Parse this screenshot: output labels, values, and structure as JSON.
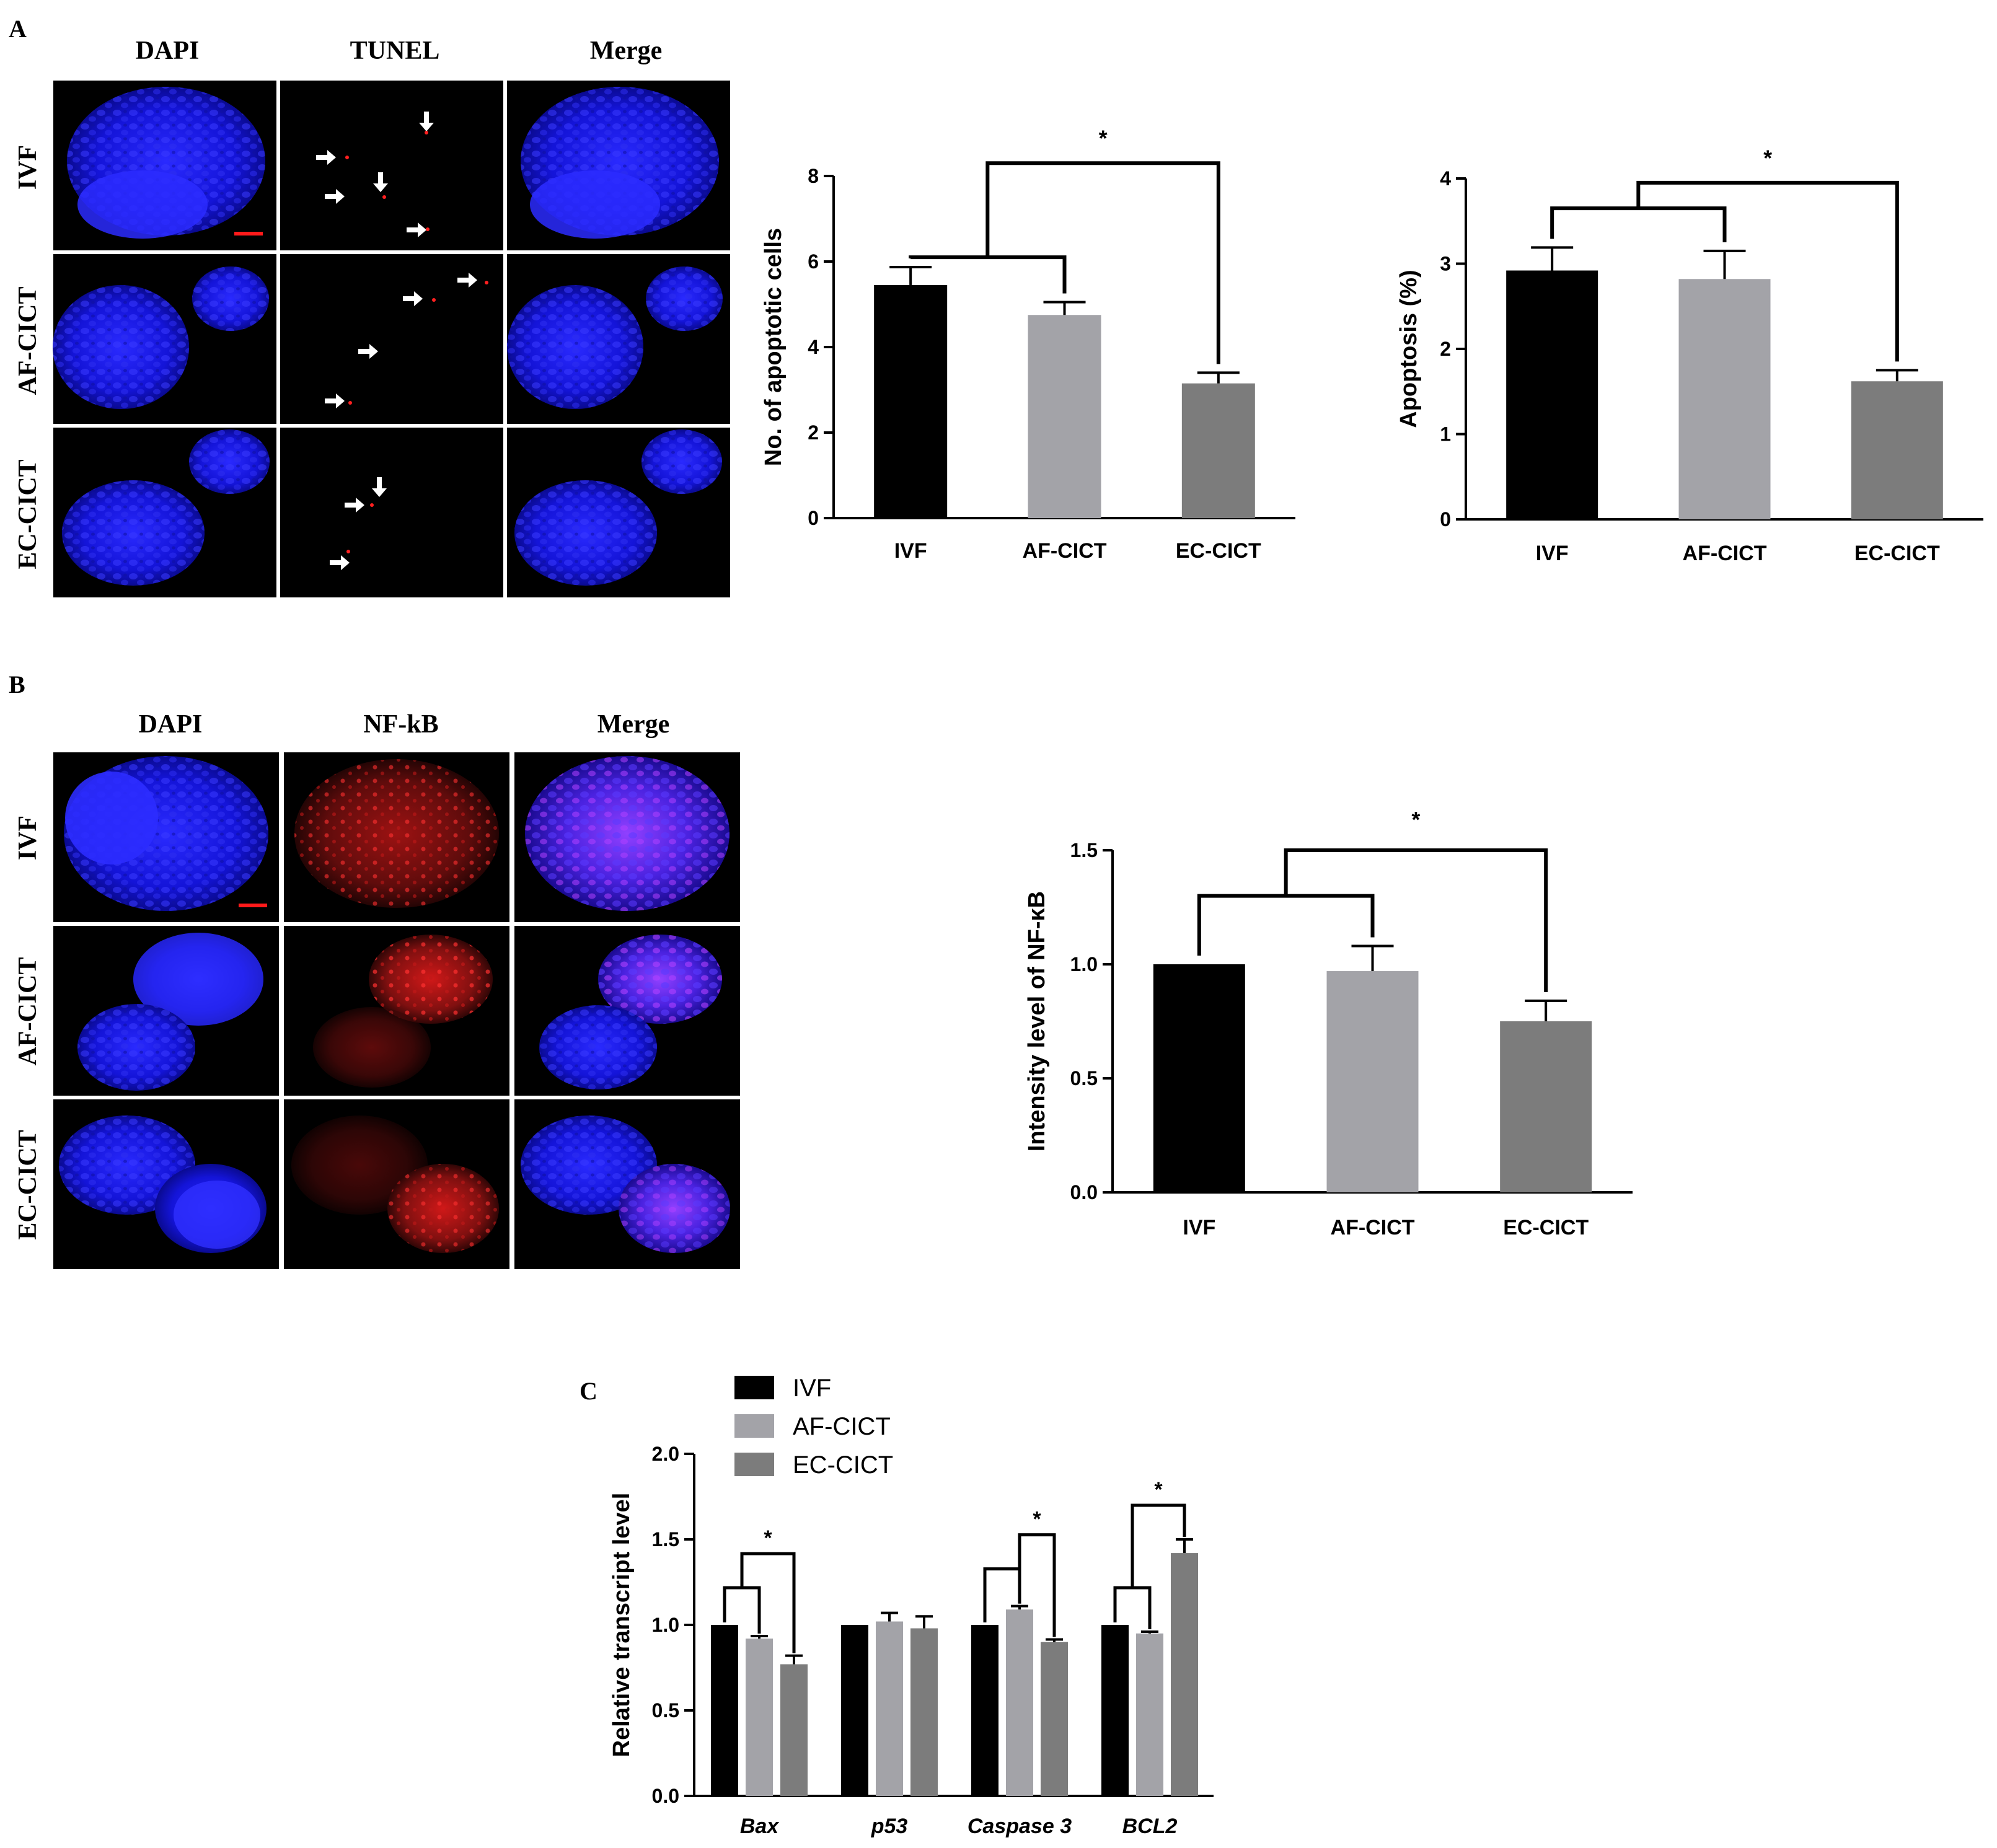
{
  "panel_a": {
    "label": "A",
    "columns": [
      "DAPI",
      "TUNEL",
      "Merge"
    ],
    "rows": [
      "IVF",
      "AF-CICT",
      "EC-CICT"
    ]
  },
  "panel_b": {
    "label": "B",
    "columns": [
      "DAPI",
      "NF-kB",
      "Merge"
    ],
    "rows": [
      "IVF",
      "AF-CICT",
      "EC-CICT"
    ]
  },
  "panel_c": {
    "label": "C"
  },
  "colors": {
    "ivf": "#000000",
    "af_cict": "#a3a3a8",
    "ec_cict": "#7c7c7c",
    "dapi": "#1a1aff",
    "tunel_red": "#ff2020",
    "scale_bar": "#ff1a1a",
    "image_bg": "#000000"
  },
  "chart_data": [
    {
      "id": "apoptotic_cells",
      "type": "bar",
      "categories": [
        "IVF",
        "AF-CICT",
        "EC-CICT"
      ],
      "values": [
        5.45,
        4.75,
        3.15
      ],
      "errors": [
        0.42,
        0.3,
        0.25
      ],
      "ylabel": "No. of apoptotic cells",
      "ylim": [
        0,
        8
      ],
      "yticks": [
        0,
        2,
        4,
        6,
        8
      ],
      "significance": "*"
    },
    {
      "id": "apoptosis_percent",
      "type": "bar",
      "categories": [
        "IVF",
        "AF-CICT",
        "EC-CICT"
      ],
      "values": [
        2.92,
        2.82,
        1.62
      ],
      "errors": [
        0.27,
        0.33,
        0.13
      ],
      "ylabel": "Apoptosis (%)",
      "ylim": [
        0,
        4
      ],
      "yticks": [
        0,
        1,
        2,
        3,
        4
      ],
      "significance": "*"
    },
    {
      "id": "nfkb_intensity",
      "type": "bar",
      "categories": [
        "IVF",
        "AF-CICT",
        "EC-CICT"
      ],
      "values": [
        1.0,
        0.97,
        0.75
      ],
      "errors": [
        0.0,
        0.11,
        0.09
      ],
      "ylabel": "Intensity level of NF-κB",
      "ylim": [
        0,
        1.5
      ],
      "yticks": [
        "0.0",
        "0.5",
        "1.0",
        "1.5"
      ],
      "significance": "*"
    },
    {
      "id": "transcript_levels",
      "type": "bar",
      "categories": [
        "Bax",
        "p53",
        "Caspase 3",
        "BCL2"
      ],
      "series": [
        {
          "name": "IVF",
          "values": [
            1.0,
            1.0,
            1.0,
            1.0
          ],
          "errors": [
            0.0,
            0.0,
            0.0,
            0.0
          ]
        },
        {
          "name": "AF-CICT",
          "values": [
            0.92,
            1.02,
            1.09,
            0.95
          ],
          "errors": [
            0.015,
            0.05,
            0.02,
            0.01
          ]
        },
        {
          "name": "EC-CICT",
          "values": [
            0.77,
            0.98,
            0.9,
            1.42
          ],
          "errors": [
            0.05,
            0.07,
            0.015,
            0.08
          ]
        }
      ],
      "ylabel": "Relative transcript level",
      "ylim": [
        0,
        2.0
      ],
      "yticks": [
        "0.0",
        "0.5",
        "1.0",
        "1.5",
        "2.0"
      ],
      "significance": [
        "*",
        "",
        "*",
        "*"
      ],
      "legend": "top-left"
    }
  ]
}
